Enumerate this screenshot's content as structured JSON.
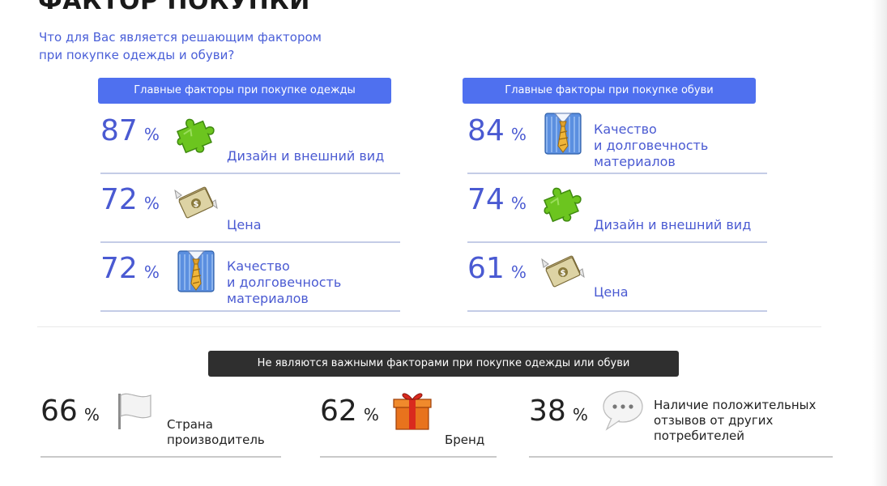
{
  "title": "ФАКТОР ПОКУПКИ",
  "subtitle": "Что для Вас является решающим фактором\nпри покупке одежды и обуви?",
  "clothes": {
    "header": "Главные факторы при покупке одежды",
    "items": [
      {
        "value": "87",
        "unit": "%",
        "label": "Дизайн и внешний вид",
        "icon": "puzzle-icon"
      },
      {
        "value": "72",
        "unit": "%",
        "label": "Цена",
        "icon": "money-icon"
      },
      {
        "value": "72",
        "unit": "%",
        "label": "Качество\nи долговечность\nматериалов",
        "icon": "shirt-tie-icon"
      }
    ]
  },
  "shoes": {
    "header": "Главные факторы при покупке обуви",
    "items": [
      {
        "value": "84",
        "unit": "%",
        "label": "Качество\nи долговечность\nматериалов",
        "icon": "shirt-tie-icon"
      },
      {
        "value": "74",
        "unit": "%",
        "label": "Дизайн и внешний вид",
        "icon": "puzzle-icon"
      },
      {
        "value": "61",
        "unit": "%",
        "label": "Цена",
        "icon": "money-icon"
      }
    ]
  },
  "not_important": {
    "header": "Не являются важными факторами при покупке одежды или обуви",
    "items": [
      {
        "value": "66",
        "unit": "%",
        "label": "Страна\nпроизводитель",
        "icon": "flag-icon"
      },
      {
        "value": "62",
        "unit": "%",
        "label": "Бренд",
        "icon": "gift-icon"
      },
      {
        "value": "38",
        "unit": "%",
        "label": "Наличие положительных\nотзывов от других\nпотребителей",
        "icon": "speech-bubble-icon"
      }
    ]
  },
  "colors": {
    "accent": "#4f70ef",
    "text_blue": "#4a5ad2",
    "dark_pill": "#2f2f2f"
  }
}
